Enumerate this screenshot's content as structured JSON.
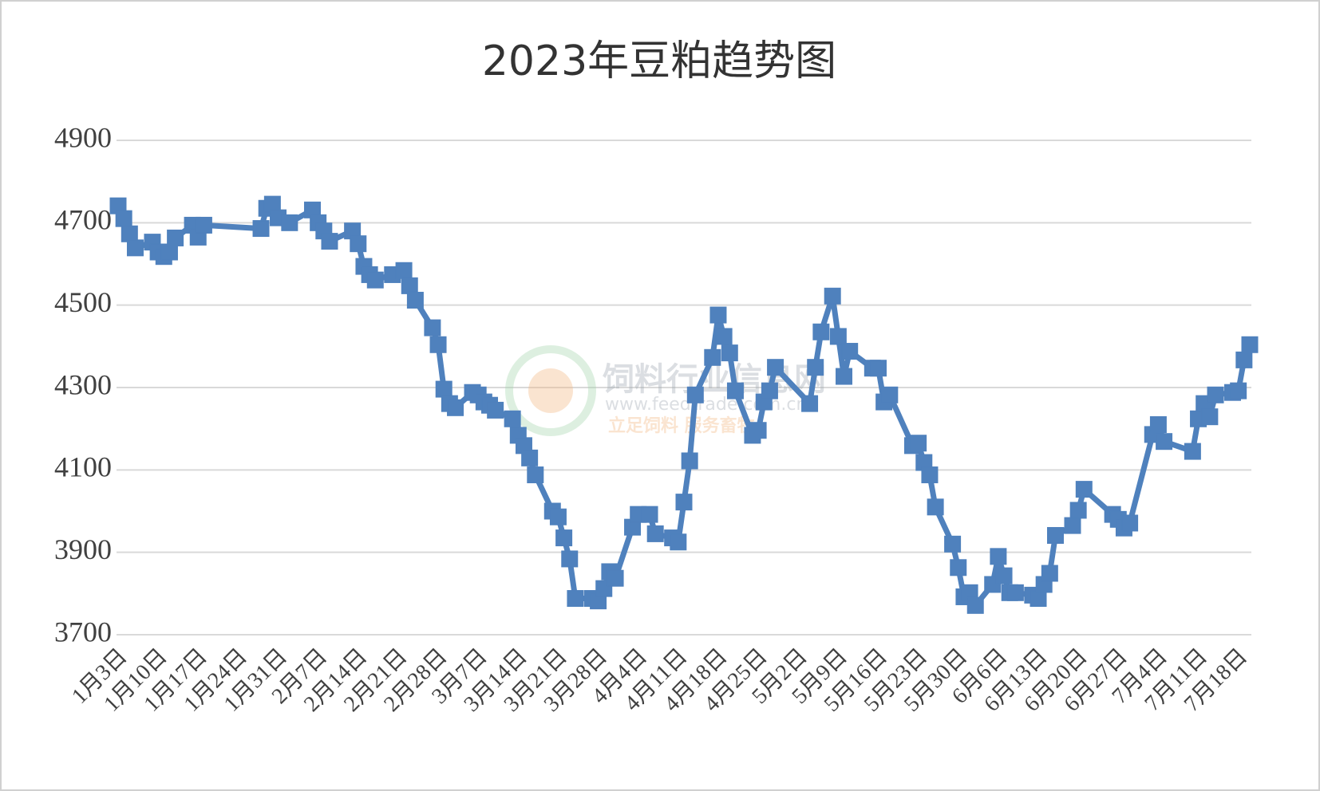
{
  "chart_data": {
    "type": "line",
    "title": "2023年豆粕趋势图",
    "watermark": [
      "饲料行业信息网",
      "www.feedtrade.com.cn",
      "立足饲料 服务畜牧"
    ],
    "x": [
      "1月3日",
      "1月4日",
      "1月5日",
      "1月6日",
      "1月9日",
      "1月10日",
      "1月11日",
      "1月12日",
      "1月13日",
      "1月16日",
      "1月17日",
      "1月18日",
      "1月28日",
      "1月29日",
      "1月30日",
      "1月31日",
      "2月2日",
      "2月6日",
      "2月7日",
      "2月8日",
      "2月9日",
      "2月13日",
      "2月14日",
      "2月15日",
      "2月16日",
      "2月17日",
      "2月20日",
      "2月22日",
      "2月23日",
      "2月24日",
      "2月27日",
      "2月28日",
      "3月1日",
      "3月2日",
      "3月3日",
      "3月6日",
      "3月7日",
      "3月8日",
      "3月9日",
      "3月10日",
      "3月13日",
      "3月14日",
      "3月15日",
      "3月16日",
      "3月17日",
      "3月20日",
      "3月21日",
      "3月22日",
      "3月23日",
      "3月24日",
      "3月27日",
      "3月28日",
      "3月29日",
      "3月30日",
      "3月31日",
      "4月3日",
      "4月4日",
      "4月6日",
      "4月7日",
      "4月10日",
      "4月11日",
      "4月12日",
      "4月13日",
      "4月14日",
      "4月17日",
      "4月18日",
      "4月19日",
      "4月20日",
      "4月21日",
      "4月24日",
      "4月25日",
      "4月26日",
      "4月27日",
      "4月28日",
      "5月4日",
      "5月5日",
      "5月6日",
      "5月8日",
      "5月9日",
      "5月10日",
      "5月11日",
      "5月15日",
      "5月16日",
      "5月17日",
      "5月18日",
      "5月22日",
      "5月23日",
      "5月24日",
      "5月25日",
      "5月26日",
      "5月29日",
      "5月30日",
      "5月31日",
      "6月1日",
      "6月2日",
      "6月5日",
      "6月6日",
      "6月7日",
      "6月8日",
      "6月9日",
      "6月12日",
      "6月13日",
      "6月14日",
      "6月15日",
      "6月16日",
      "6月19日",
      "6月20日",
      "6月21日",
      "6月26日",
      "6月27日",
      "6月28日",
      "6月29日",
      "7月3日",
      "7月4日",
      "7月5日",
      "7月10日",
      "7月11日",
      "7月12日",
      "7月13日",
      "7月14日",
      "7月17日",
      "7月18日",
      "7月19日",
      "7月20日"
    ],
    "values": [
      4741,
      4710,
      4673,
      4639,
      4653,
      4629,
      4618,
      4629,
      4663,
      4694,
      4665,
      4694,
      4686,
      4735,
      4745,
      4712,
      4700,
      4731,
      4700,
      4680,
      4655,
      4680,
      4649,
      4594,
      4574,
      4561,
      4574,
      4584,
      4547,
      4512,
      4445,
      4404,
      4296,
      4261,
      4251,
      4288,
      4282,
      4265,
      4257,
      4245,
      4224,
      4184,
      4159,
      4129,
      4088,
      4000,
      3986,
      3935,
      3884,
      3788,
      3788,
      3782,
      3812,
      3853,
      3837,
      3961,
      3992,
      3992,
      3945,
      3935,
      3925,
      4022,
      4122,
      4282,
      4373,
      4476,
      4424,
      4384,
      4292,
      4184,
      4196,
      4265,
      4292,
      4349,
      4261,
      4349,
      4435,
      4522,
      4424,
      4327,
      4388,
      4347,
      4347,
      4265,
      4282,
      4159,
      4165,
      4118,
      4088,
      4010,
      3920,
      3863,
      3792,
      3802,
      3771,
      3822,
      3890,
      3843,
      3802,
      3802,
      3796,
      3788,
      3822,
      3849,
      3941,
      3965,
      4002,
      4053,
      3992,
      3980,
      3959,
      3971,
      4186,
      4210,
      4169,
      4145,
      4224,
      4261,
      4229,
      4282,
      4288,
      4292,
      4367,
      4404
    ],
    "color": "#4f81bd",
    "xticks": [
      "1月3日",
      "1月10日",
      "1月17日",
      "1月24日",
      "1月31日",
      "2月7日",
      "2月14日",
      "2月21日",
      "2月28日",
      "3月7日",
      "3月14日",
      "3月21日",
      "3月28日",
      "4月4日",
      "4月11日",
      "4月18日",
      "4月25日",
      "5月2日",
      "5月9日",
      "5月16日",
      "5月23日",
      "5月30日",
      "6月6日",
      "6月13日",
      "6月20日",
      "6月27日",
      "7月4日",
      "7月11日",
      "7月18日"
    ],
    "ylim": [
      3700,
      4900
    ],
    "yticks": [
      3700,
      3900,
      4100,
      4300,
      4500,
      4700,
      4900
    ],
    "grid": true
  }
}
